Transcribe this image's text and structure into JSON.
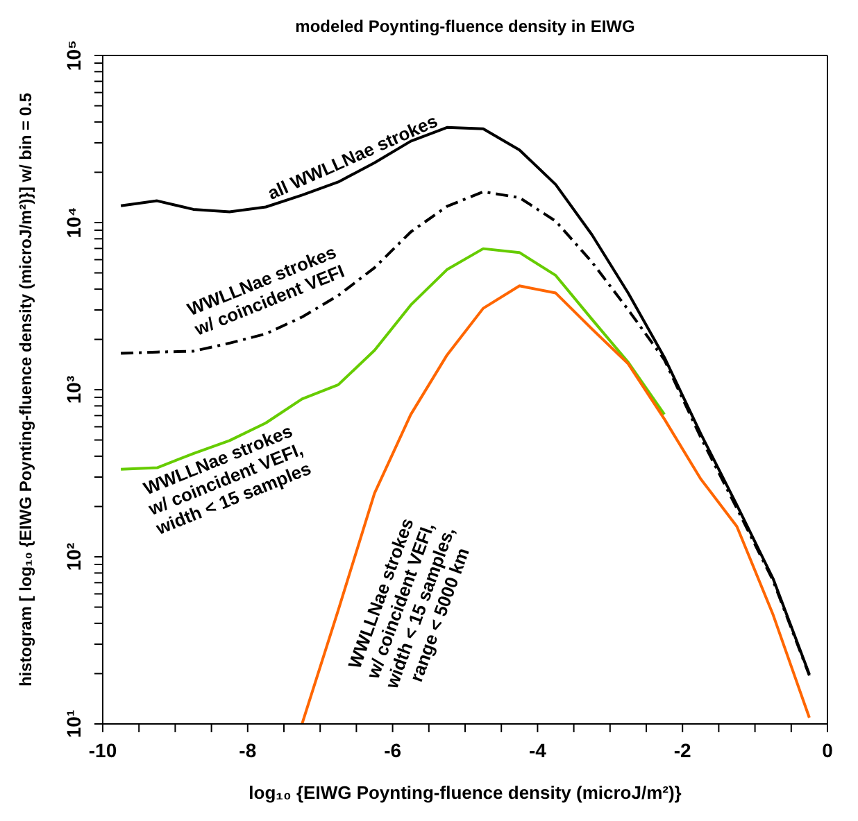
{
  "chart_data": {
    "type": "line",
    "title": "modeled Poynting-fluence density in EIWG",
    "xlabel": "log₁₀ {EIWG Poynting-fluence density (microJ/m²)}",
    "ylabel": "histogram [ log₁₀ {EIWG Poynting-fluence density (microJ/m²)}] w/ bin = 0.5",
    "x": [
      -9.75,
      -9.25,
      -8.75,
      -8.25,
      -7.75,
      -7.25,
      -6.75,
      -6.25,
      -5.75,
      -5.25,
      -4.75,
      -4.25,
      -3.75,
      -3.25,
      -2.75,
      -2.25,
      -1.75,
      -1.25,
      -0.75,
      -0.25
    ],
    "series": [
      {
        "name": "all WWLLNae strokes",
        "color": "#000000",
        "line_style": "solid",
        "values": [
          12600,
          13500,
          12000,
          11600,
          12400,
          14600,
          17500,
          22800,
          30700,
          37100,
          36400,
          27200,
          16900,
          8460,
          3790,
          1560,
          547,
          204,
          74,
          19.8
        ]
      },
      {
        "name": "WWLLNae strokes\nw/ coincident VEFI",
        "color": "#000000",
        "line_style": "dashed",
        "values": [
          1650,
          1680,
          1700,
          1900,
          2160,
          2720,
          3660,
          5370,
          8790,
          12500,
          15300,
          14100,
          10200,
          5810,
          3010,
          1510,
          520,
          195,
          72,
          19.5
        ]
      },
      {
        "name": "WWLLNae strokes\nw/ coincident VEFI,\nwidth < 15 samples",
        "color": "#66cc00",
        "line_style": "solid",
        "values": [
          334,
          341,
          415,
          496,
          632,
          880,
          1070,
          1720,
          3210,
          5230,
          6980,
          6620,
          4830,
          2640,
          1460,
          712,
          null,
          null,
          null,
          null
        ]
      },
      {
        "name": "WWLLNae strokes\nw/ coincident VEFI,\nwidth < 15 samples,\nrange < 5000 km",
        "color": "#ff6600",
        "line_style": "solid",
        "values": [
          null,
          null,
          null,
          null,
          null,
          10,
          48,
          240,
          710,
          1610,
          3070,
          4180,
          3790,
          2310,
          1430,
          667,
          293,
          152,
          45,
          10.9
        ]
      }
    ],
    "log": "y",
    "xlim": [
      -10,
      0
    ],
    "xticks": [
      -10,
      {
        "value": -9.5,
        "label": null
      },
      {
        "value": -9,
        "label": null
      },
      {
        "value": -8.5,
        "label": null
      },
      -8,
      {
        "value": -7.5,
        "label": null
      },
      {
        "value": -7,
        "label": null
      },
      {
        "value": -6.5,
        "label": null
      },
      -6,
      {
        "value": -5.5,
        "label": null
      },
      {
        "value": -5,
        "label": null
      },
      {
        "value": -4.5,
        "label": null
      },
      -4,
      {
        "value": -3.5,
        "label": null
      },
      {
        "value": -3,
        "label": null
      },
      {
        "value": -2.5,
        "label": null
      },
      -2,
      {
        "value": -1.5,
        "label": null
      },
      {
        "value": -1,
        "label": null
      },
      {
        "value": -0.5,
        "label": null
      },
      0
    ],
    "ylim": [
      10,
      100000
    ],
    "yticks": [
      {
        "value": 10,
        "label": "10¹"
      },
      {
        "value": 20,
        "label": null
      },
      {
        "value": 30,
        "label": null
      },
      {
        "value": 40,
        "label": null
      },
      {
        "value": 50,
        "label": null
      },
      {
        "value": 60,
        "label": null
      },
      {
        "value": 70,
        "label": null
      },
      {
        "value": 80,
        "label": null
      },
      {
        "value": 90,
        "label": null
      },
      {
        "value": 100,
        "label": "10²"
      },
      {
        "value": 200,
        "label": null
      },
      {
        "value": 300,
        "label": null
      },
      {
        "value": 400,
        "label": null
      },
      {
        "value": 500,
        "label": null
      },
      {
        "value": 600,
        "label": null
      },
      {
        "value": 700,
        "label": null
      },
      {
        "value": 800,
        "label": null
      },
      {
        "value": 900,
        "label": null
      },
      {
        "value": 1000,
        "label": "10³"
      },
      {
        "value": 2000,
        "label": null
      },
      {
        "value": 3000,
        "label": null
      },
      {
        "value": 4000,
        "label": null
      },
      {
        "value": 5000,
        "label": null
      },
      {
        "value": 6000,
        "label": null
      },
      {
        "value": 7000,
        "label": null
      },
      {
        "value": 8000,
        "label": null
      },
      {
        "value": 9000,
        "label": null
      },
      {
        "value": 10000,
        "label": "10⁴"
      },
      {
        "value": 20000,
        "label": null
      },
      {
        "value": 30000,
        "label": null
      },
      {
        "value": 40000,
        "label": null
      },
      {
        "value": 50000,
        "label": null
      },
      {
        "value": 60000,
        "label": null
      },
      {
        "value": 70000,
        "label": null
      },
      {
        "value": 80000,
        "label": null
      },
      {
        "value": 90000,
        "label": null
      },
      {
        "value": 100000,
        "label": "10⁵"
      }
    ],
    "grid": false,
    "legend": false,
    "marker": "none"
  }
}
